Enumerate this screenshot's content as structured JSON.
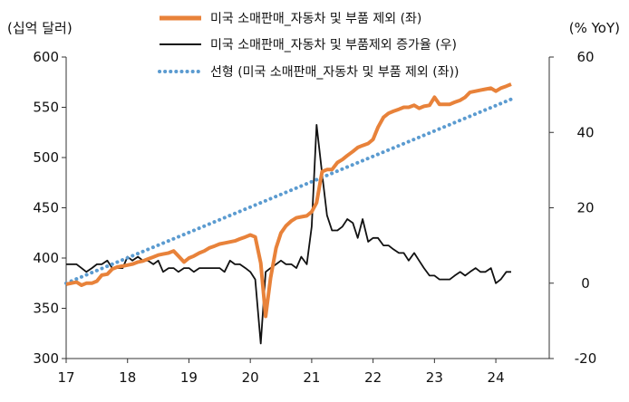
{
  "chart_data": {
    "type": "line",
    "title": "",
    "y_left_unit": "(십억 달러)",
    "y_right_unit": "(% YoY)",
    "y_left_lim": [
      300,
      600
    ],
    "y_left_ticks": [
      "600",
      "550",
      "500",
      "450",
      "400",
      "350",
      "300"
    ],
    "y_right_lim": [
      -20,
      60
    ],
    "y_right_ticks": [
      "60",
      "40",
      "20",
      "0",
      "-20"
    ],
    "x_ticks": [
      "17",
      "18",
      "19",
      "20",
      "21",
      "22",
      "23",
      "24"
    ],
    "legend_placement": "top-center",
    "grid": false,
    "series": [
      {
        "name": "미국 소매판매_자동차 및 부품 제외 (좌)",
        "axis": "left",
        "color": "#E8823A",
        "style": "solid-thick",
        "x": [
          2017.0,
          2017.08,
          2017.17,
          2017.25,
          2017.33,
          2017.42,
          2017.5,
          2017.58,
          2017.67,
          2017.75,
          2017.83,
          2017.92,
          2018.0,
          2018.08,
          2018.17,
          2018.25,
          2018.33,
          2018.42,
          2018.5,
          2018.58,
          2018.67,
          2018.75,
          2018.83,
          2018.92,
          2019.0,
          2019.08,
          2019.17,
          2019.25,
          2019.33,
          2019.42,
          2019.5,
          2019.58,
          2019.67,
          2019.75,
          2019.83,
          2019.92,
          2020.0,
          2020.08,
          2020.17,
          2020.25,
          2020.33,
          2020.42,
          2020.5,
          2020.58,
          2020.67,
          2020.75,
          2020.83,
          2020.92,
          2021.0,
          2021.08,
          2021.17,
          2021.25,
          2021.33,
          2021.42,
          2021.5,
          2021.58,
          2021.67,
          2021.75,
          2021.83,
          2021.92,
          2022.0,
          2022.08,
          2022.17,
          2022.25,
          2022.33,
          2022.42,
          2022.5,
          2022.58,
          2022.67,
          2022.75,
          2022.83,
          2022.92,
          2023.0,
          2023.08,
          2023.17,
          2023.25,
          2023.33,
          2023.42,
          2023.5,
          2023.58,
          2023.67,
          2023.75,
          2023.83,
          2023.92,
          2024.0,
          2024.08,
          2024.17,
          2024.25
        ],
        "values": [
          374,
          375,
          376,
          373,
          375,
          375,
          377,
          383,
          384,
          389,
          391,
          392,
          393,
          394,
          396,
          397,
          399,
          401,
          403,
          404,
          405,
          407,
          402,
          396,
          400,
          402,
          405,
          407,
          410,
          412,
          414,
          415,
          416,
          417,
          419,
          421,
          423,
          421,
          395,
          342,
          380,
          410,
          425,
          432,
          437,
          440,
          441,
          442,
          446,
          455,
          486,
          488,
          488,
          495,
          498,
          502,
          506,
          510,
          512,
          514,
          518,
          530,
          540,
          544,
          546,
          548,
          550,
          550,
          552,
          549,
          551,
          552,
          560,
          553,
          553,
          553,
          555,
          557,
          560,
          565,
          566,
          567,
          568,
          569,
          566,
          569,
          571,
          573
        ]
      },
      {
        "name": "미국 소매판매_자동차 및 부품제외 증가율 (우)",
        "axis": "right",
        "color": "#111111",
        "style": "solid-thin",
        "x": [
          2017.0,
          2017.08,
          2017.17,
          2017.25,
          2017.33,
          2017.42,
          2017.5,
          2017.58,
          2017.67,
          2017.75,
          2017.83,
          2017.92,
          2018.0,
          2018.08,
          2018.17,
          2018.25,
          2018.33,
          2018.42,
          2018.5,
          2018.58,
          2018.67,
          2018.75,
          2018.83,
          2018.92,
          2019.0,
          2019.08,
          2019.17,
          2019.25,
          2019.33,
          2019.42,
          2019.5,
          2019.58,
          2019.67,
          2019.75,
          2019.83,
          2019.92,
          2020.0,
          2020.08,
          2020.17,
          2020.25,
          2020.33,
          2020.42,
          2020.5,
          2020.58,
          2020.67,
          2020.75,
          2020.83,
          2020.92,
          2021.0,
          2021.08,
          2021.17,
          2021.25,
          2021.33,
          2021.42,
          2021.5,
          2021.58,
          2021.67,
          2021.75,
          2021.83,
          2021.92,
          2022.0,
          2022.08,
          2022.17,
          2022.25,
          2022.33,
          2022.42,
          2022.5,
          2022.58,
          2022.67,
          2022.75,
          2022.83,
          2022.92,
          2023.0,
          2023.08,
          2023.17,
          2023.25,
          2023.33,
          2023.42,
          2023.5,
          2023.58,
          2023.67,
          2023.75,
          2023.83,
          2023.92,
          2024.0,
          2024.08,
          2024.17,
          2024.25
        ],
        "values": [
          5,
          5,
          5,
          4,
          3,
          4,
          5,
          5,
          6,
          4,
          4,
          4,
          7,
          6,
          7,
          6,
          6,
          5,
          6,
          3,
          4,
          4,
          3,
          4,
          4,
          3,
          4,
          4,
          4,
          4,
          4,
          3,
          6,
          5,
          5,
          4,
          3,
          1,
          -16,
          3,
          4,
          5,
          6,
          5,
          5,
          4,
          7,
          5,
          15,
          42,
          29,
          18,
          14,
          14,
          15,
          17,
          16,
          12,
          17,
          11,
          12,
          12,
          10,
          10,
          9,
          8,
          8,
          6,
          8,
          6,
          4,
          2,
          2,
          1,
          1,
          1,
          2,
          3,
          2,
          3,
          4,
          3,
          3,
          4,
          0,
          1,
          3,
          3
        ]
      },
      {
        "name": "선형 (미국 소매판매_자동차 및 부품 제외 (좌))",
        "axis": "left",
        "color": "#5B9BD0",
        "style": "dotted",
        "x": [
          2017.0,
          2024.25
        ],
        "values": [
          375,
          558
        ]
      }
    ]
  }
}
